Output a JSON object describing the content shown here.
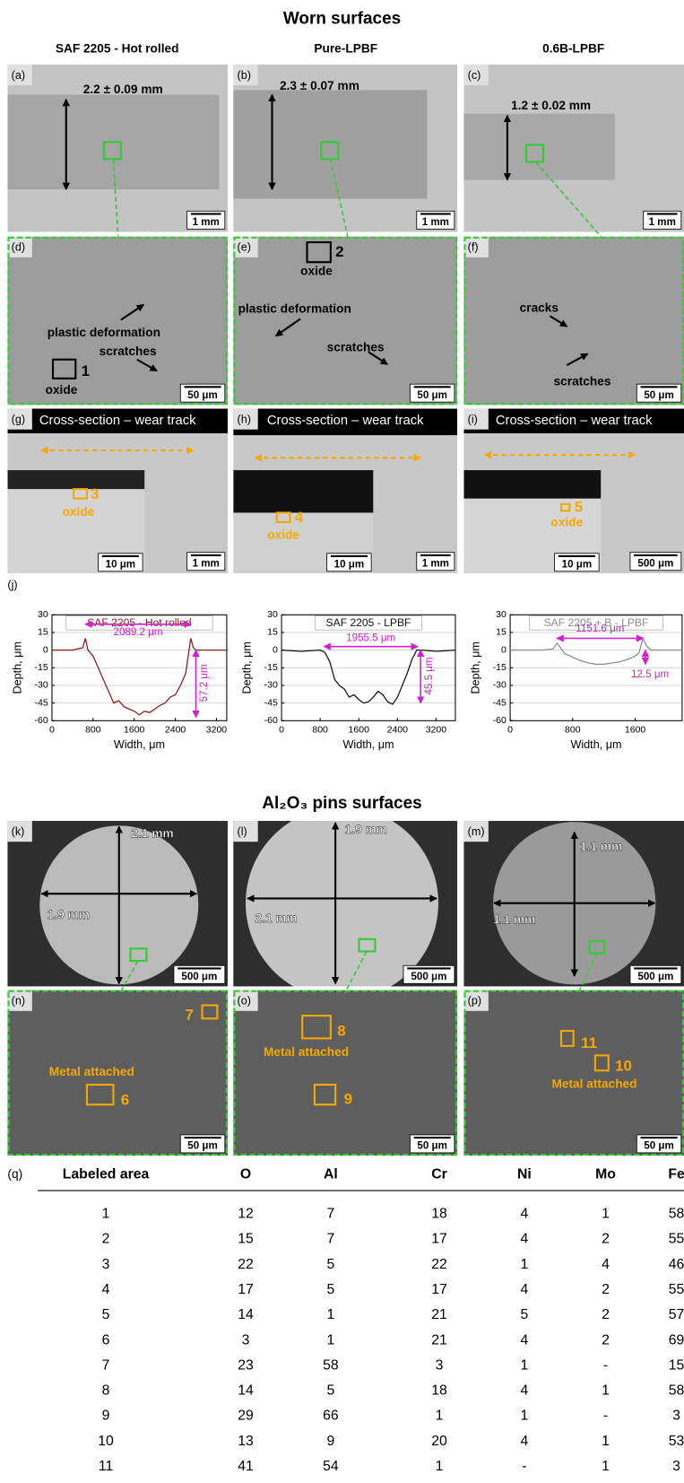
{
  "header": {
    "title": "Worn surfaces",
    "columns": [
      "SAF 2205 - Hot rolled",
      "Pure-LPBF",
      "0.6B-LPBF"
    ]
  },
  "panels": [
    {
      "label": "(a)",
      "notes": [
        "2.2 ± 0.09 mm"
      ],
      "scale": "1 mm"
    },
    {
      "label": "(b)",
      "notes": [
        "2.3 ± 0.07 mm"
      ],
      "scale": "1 mm"
    },
    {
      "label": "(c)",
      "notes": [
        "1.2 ± 0.02 mm"
      ],
      "scale": "1 mm"
    },
    {
      "label": "(d)",
      "notes": [
        "plastic deformation",
        "scratches",
        "1",
        "oxide"
      ],
      "scale": "50 μm"
    },
    {
      "label": "(e)",
      "notes": [
        "2",
        "oxide",
        "plastic deformation",
        "scratches"
      ],
      "scale": "50 μm"
    },
    {
      "label": "(f)",
      "notes": [
        "cracks",
        "scratches"
      ],
      "scale": "50 μm"
    },
    {
      "label": "(g)",
      "band": "Cross-section – wear track",
      "notes": [
        "3",
        "oxide"
      ],
      "inset_scale": "10 μm",
      "scale": "1 mm"
    },
    {
      "label": "(h)",
      "band": "Cross-section – wear track",
      "notes": [
        "4",
        "oxide"
      ],
      "inset_scale": "10 μm",
      "scale": "1 mm"
    },
    {
      "label": "(i)",
      "band": "Cross-section – wear track",
      "notes": [
        "5",
        "oxide"
      ],
      "inset_scale": "10 μm",
      "scale": "500 μm"
    },
    {
      "label": "(k)",
      "notes": [
        "2.1 mm",
        "1.9 mm"
      ],
      "scale": "500 μm"
    },
    {
      "label": "(l)",
      "notes": [
        "1.9 mm",
        "2.1 mm"
      ],
      "scale": "500 μm"
    },
    {
      "label": "(m)",
      "notes": [
        "1.1 mm",
        "1.1 mm"
      ],
      "scale": "500 μm"
    },
    {
      "label": "(n)",
      "notes": [
        "7",
        "Metal attached",
        "6"
      ],
      "scale": "50 μm"
    },
    {
      "label": "(o)",
      "notes": [
        "8",
        "Metal attached",
        "9"
      ],
      "scale": "50 μm"
    },
    {
      "label": "(p)",
      "notes": [
        "11",
        "10",
        "Metal attached"
      ],
      "scale": "50 μm"
    }
  ],
  "charts_label": "(j)",
  "chart_data": [
    {
      "type": "line",
      "title": "SAF 2205 - Hot rolled",
      "x_label": "Width, μm",
      "y_label": "Depth, μm",
      "color": "#8b1a1a",
      "x": [
        0,
        200,
        400,
        600,
        650,
        700,
        800,
        900,
        1000,
        1100,
        1200,
        1300,
        1400,
        1500,
        1600,
        1700,
        1800,
        1900,
        2000,
        2100,
        2200,
        2300,
        2400,
        2500,
        2600,
        2700,
        2750,
        2800,
        3000,
        3200,
        3400
      ],
      "values": [
        0,
        0,
        0,
        2,
        10,
        0,
        -5,
        -15,
        -25,
        -35,
        -45,
        -43,
        -48,
        -50,
        -52,
        -55,
        -52,
        -53,
        -50,
        -47,
        -45,
        -40,
        -38,
        -30,
        -20,
        10,
        2,
        0,
        0,
        0,
        0
      ],
      "xlim": [
        0,
        3400
      ],
      "xticks": [
        0,
        800,
        1600,
        2400,
        3200
      ],
      "ylim": [
        -60,
        30
      ],
      "yticks": [
        -60,
        -45,
        -30,
        -15,
        0,
        15,
        30
      ],
      "grid": true,
      "annotations": [
        "2089.2 μm",
        "57.2 μm"
      ]
    },
    {
      "type": "line",
      "title": "SAF 2205 - LPBF",
      "x_label": "Width, μm",
      "y_label": "Depth, μm",
      "color": "#111111",
      "x": [
        0,
        400,
        800,
        900,
        1000,
        1100,
        1200,
        1300,
        1400,
        1500,
        1600,
        1700,
        1800,
        1900,
        2000,
        2100,
        2200,
        2300,
        2400,
        2500,
        2600,
        2700,
        2800,
        2900,
        3200,
        3600
      ],
      "values": [
        0,
        -1,
        0,
        -2,
        -10,
        -25,
        -30,
        -33,
        -40,
        -38,
        -42,
        -45,
        -44,
        -40,
        -35,
        -38,
        -44,
        -46,
        -40,
        -30,
        -20,
        -8,
        0,
        0,
        -1,
        0
      ],
      "xlim": [
        0,
        3600
      ],
      "xticks": [
        0,
        800,
        1600,
        2400,
        3200
      ],
      "ylim": [
        -60,
        30
      ],
      "yticks": [
        -60,
        -45,
        -30,
        -15,
        0,
        15,
        30
      ],
      "grid": true,
      "annotations": [
        "1955.5 μm",
        "45.5 μm"
      ]
    },
    {
      "type": "line",
      "title": "SAF 2205 + B - LPBF",
      "x_label": "Width, μm",
      "y_label": "Depth, μm",
      "color": "#8c8c8c",
      "x": [
        0,
        400,
        550,
        600,
        700,
        800,
        900,
        1000,
        1100,
        1200,
        1300,
        1400,
        1500,
        1600,
        1650,
        1700,
        1750,
        1800,
        2000,
        2200
      ],
      "values": [
        0,
        0,
        1,
        6,
        -3,
        -6,
        -9,
        -11,
        -12,
        -12,
        -11,
        -10,
        -8,
        -5,
        -2,
        10,
        3,
        0,
        0,
        0
      ],
      "xlim": [
        0,
        2200
      ],
      "xticks": [
        0,
        800,
        1600
      ],
      "ylim": [
        -60,
        30
      ],
      "yticks": [
        -60,
        -45,
        -30,
        -15,
        0,
        15,
        30
      ],
      "grid": true,
      "annotations": [
        "1151.6 μm",
        "12.5 μm"
      ]
    }
  ],
  "section2": {
    "title": "Al₂O₃ pins surfaces"
  },
  "table": {
    "label": "(q)",
    "header": [
      "Labeled area",
      "O",
      "Al",
      "Cr",
      "Ni",
      "Mo",
      "Fe"
    ],
    "rows": [
      [
        1,
        12,
        7,
        18,
        4,
        1,
        58
      ],
      [
        2,
        15,
        7,
        17,
        4,
        2,
        55
      ],
      [
        3,
        22,
        5,
        22,
        1,
        4,
        46
      ],
      [
        4,
        17,
        5,
        17,
        4,
        2,
        55
      ],
      [
        5,
        14,
        1,
        21,
        5,
        2,
        57
      ],
      [
        6,
        3,
        1,
        21,
        4,
        2,
        69
      ],
      [
        7,
        23,
        58,
        3,
        1,
        "-",
        15
      ],
      [
        8,
        14,
        5,
        18,
        4,
        1,
        58
      ],
      [
        9,
        29,
        66,
        1,
        1,
        "-",
        3
      ],
      [
        10,
        13,
        9,
        20,
        4,
        1,
        53
      ],
      [
        11,
        41,
        54,
        1,
        "-",
        1,
        3
      ]
    ]
  }
}
